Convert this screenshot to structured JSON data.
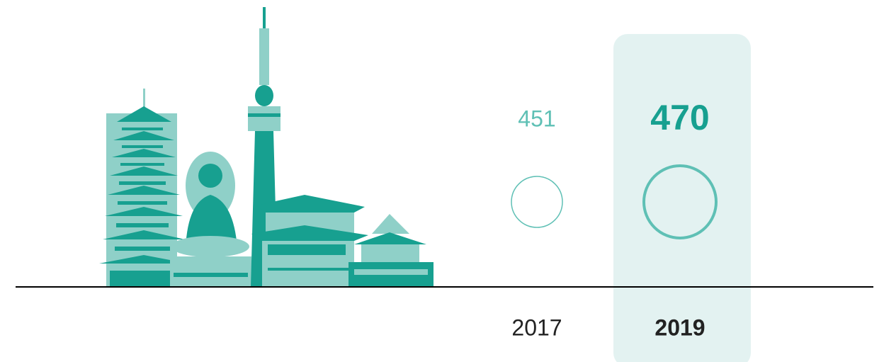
{
  "chart_data": {
    "type": "bubble",
    "categories": [
      "2017",
      "2019"
    ],
    "values": [
      451,
      470
    ],
    "highlight": "2019",
    "color": "#17a090",
    "light_color": "#5fc0b5"
  }
}
